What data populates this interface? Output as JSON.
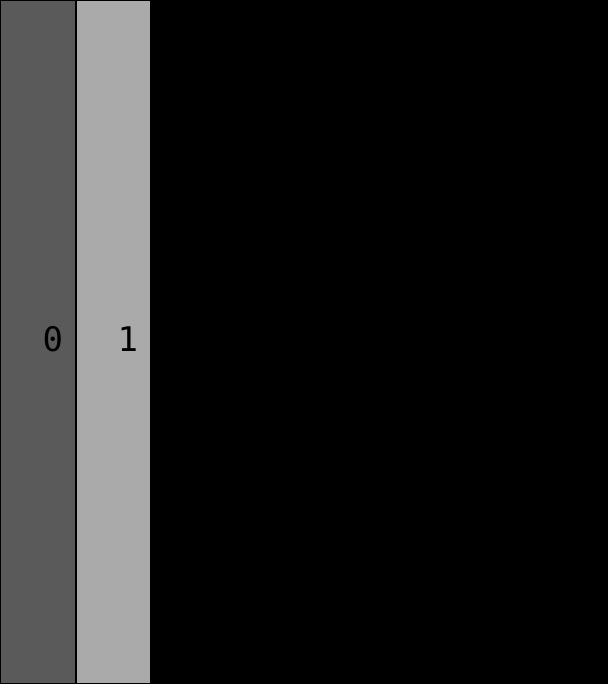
{
  "columns": [
    {
      "label": "0",
      "color": "#5a5a5a"
    },
    {
      "label": "1",
      "color": "#aaaaaa"
    }
  ],
  "background_color": "#000000"
}
